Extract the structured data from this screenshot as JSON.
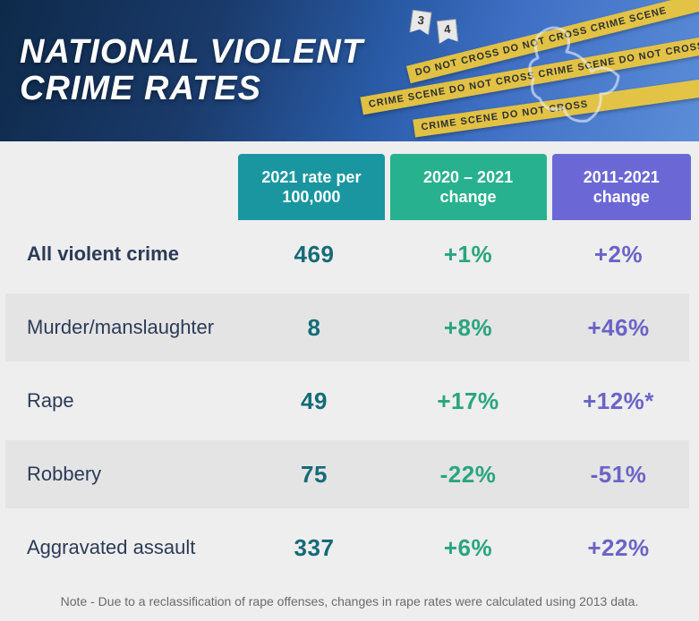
{
  "title_line1": "NATIONAL VIOLENT",
  "title_line2": "CRIME RATES",
  "banner": {
    "bg_gradient": [
      "#0e2a4a",
      "#1a3a6a",
      "#2a5ca8",
      "#3f6fc4",
      "#5c8dd8"
    ],
    "title_color": "#ffffff",
    "title_fontsize": 38,
    "tape_color": "#f0c93a",
    "tape_texts": [
      "DO NOT CROSS  DO NOT CROSS  CRIME SCENE",
      "CRIME SCENE  DO NOT CROSS  CRIME SCENE  DO NOT CROSS",
      "CRIME SCENE  DO NOT CROSS"
    ],
    "markers": [
      "3",
      "4"
    ]
  },
  "table": {
    "type": "table",
    "background_color": "#eeeeee",
    "row_shade_color": "#e4e4e4",
    "label_color": "#2b3b57",
    "label_fontsize": 22,
    "value_fontsize": 26,
    "columns": [
      {
        "key": "rate",
        "label": "2021 rate per 100,000",
        "header_bg": "#1996a0",
        "value_color": "#146b78"
      },
      {
        "key": "chg1",
        "label": "2020 – 2021 change",
        "header_bg": "#27b18e",
        "value_color": "#29a57f"
      },
      {
        "key": "chg2",
        "label": "2011-2021 change",
        "header_bg": "#6b68d6",
        "value_color": "#6b63c7"
      }
    ],
    "rows": [
      {
        "label": "All violent crime",
        "bold": true,
        "rate": "469",
        "chg1": "+1%",
        "chg2": "+2%"
      },
      {
        "label": "Murder/manslaughter",
        "bold": false,
        "rate": "8",
        "chg1": "+8%",
        "chg2": "+46%"
      },
      {
        "label": "Rape",
        "bold": false,
        "rate": "49",
        "chg1": "+17%",
        "chg2": "+12%*"
      },
      {
        "label": "Robbery",
        "bold": false,
        "rate": "75",
        "chg1": "-22%",
        "chg2": "-51%"
      },
      {
        "label": "Aggravated assault",
        "bold": false,
        "rate": "337",
        "chg1": "+6%",
        "chg2": "+22%"
      }
    ]
  },
  "footnote": "Note - Due to a reclassification of rape offenses, changes in rape rates were calculated using 2013 data."
}
